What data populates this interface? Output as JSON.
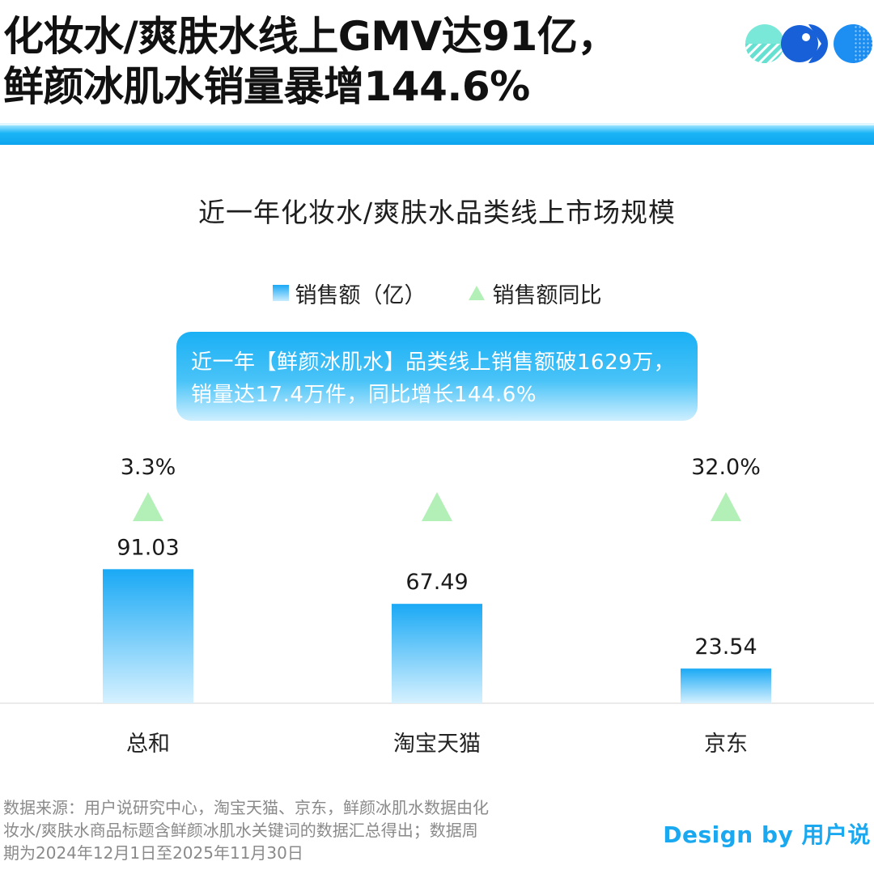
{
  "header": {
    "headline_line1": "化妆水/爽肤水线上GMV达91亿，",
    "headline_line2": "鲜颜冰肌水销量暴增144.6%"
  },
  "colors": {
    "accent": "#1aa9f5",
    "bar_top": "#1aa9f5",
    "bar_bottom": "#d6f1ff",
    "triangle": "#b3f0b8",
    "brand_text": "#1aa9f0"
  },
  "callout": {
    "line1": "近一年【鲜颜冰肌水】品类线上销售额破1629万，",
    "line2": "销量达17.4万件，同比增长144.6%"
  },
  "chart_data": {
    "type": "bar",
    "title": "近一年化妆水/爽肤水品类线上市场规模",
    "categories": [
      "总和",
      "淘宝天猫",
      "京东"
    ],
    "series": [
      {
        "name": "销售额（亿）",
        "type": "bar",
        "values": [
          91.03,
          67.49,
          23.54
        ],
        "labels": [
          "91.03",
          "67.49",
          "23.54"
        ]
      },
      {
        "name": "销售额同比",
        "type": "triangle-marker",
        "values": [
          3.3,
          null,
          32.0
        ],
        "labels": [
          "3.3%",
          "",
          "32.0%"
        ]
      }
    ],
    "ylim": [
      0,
      110
    ],
    "grid": false,
    "legend": "top-center"
  },
  "footer": {
    "source_line1": "数据来源：用户说研究中心，淘宝天猫、京东，鲜颜冰肌水数据由化",
    "source_line2": "妆水/爽肤水商品标题含鲜颜冰肌水关键词的数据汇总得出；数据周",
    "source_line3": "期为2024年12月1日至2025年11月30日",
    "credit": "Design by 用户说"
  }
}
